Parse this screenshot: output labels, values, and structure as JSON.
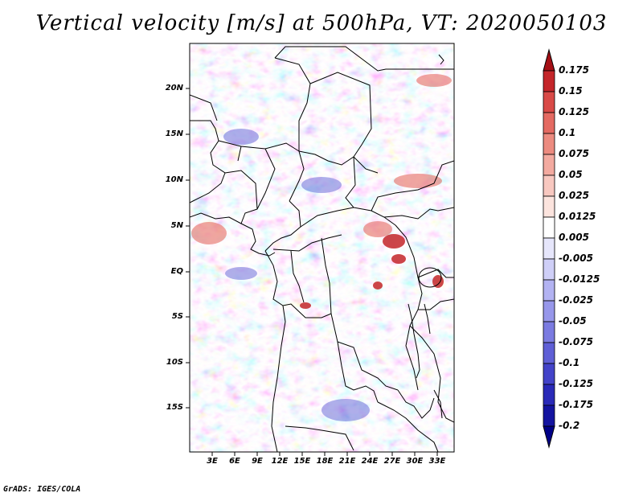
{
  "title": "Vertical velocity [m/s] at 500hPa, VT: 2020050103",
  "footer": "GrADS: IGES/COLA",
  "map": {
    "lat_labels": [
      "20N",
      "15N",
      "10N",
      "5N",
      "EQ",
      "5S",
      "10S",
      "15S"
    ],
    "lon_labels": [
      "3E",
      "6E",
      "9E",
      "12E",
      "15E",
      "18E",
      "21E",
      "24E",
      "27E",
      "30E",
      "33E"
    ],
    "field_name": "vertical-velocity-field"
  },
  "colorbar": {
    "labels": [
      "0.175",
      "0.15",
      "0.125",
      "0.1",
      "0.075",
      "0.05",
      "0.025",
      "0.0125",
      "0.005",
      "-0.005",
      "-0.0125",
      "-0.025",
      "-0.05",
      "-0.075",
      "-0.1",
      "-0.125",
      "-0.175",
      "-0.2"
    ],
    "colors": [
      "#a50f15",
      "#c4262a",
      "#d94a47",
      "#e46a62",
      "#ec8b80",
      "#f3aaa0",
      "#f8c8c0",
      "#fce4de",
      "#ffffff",
      "#e6e6fb",
      "#cfcff7",
      "#b3b3f2",
      "#9797ea",
      "#7b7be1",
      "#5f5fd6",
      "#4343c9",
      "#2a2ab8",
      "#1414a0",
      "#000088"
    ]
  }
}
